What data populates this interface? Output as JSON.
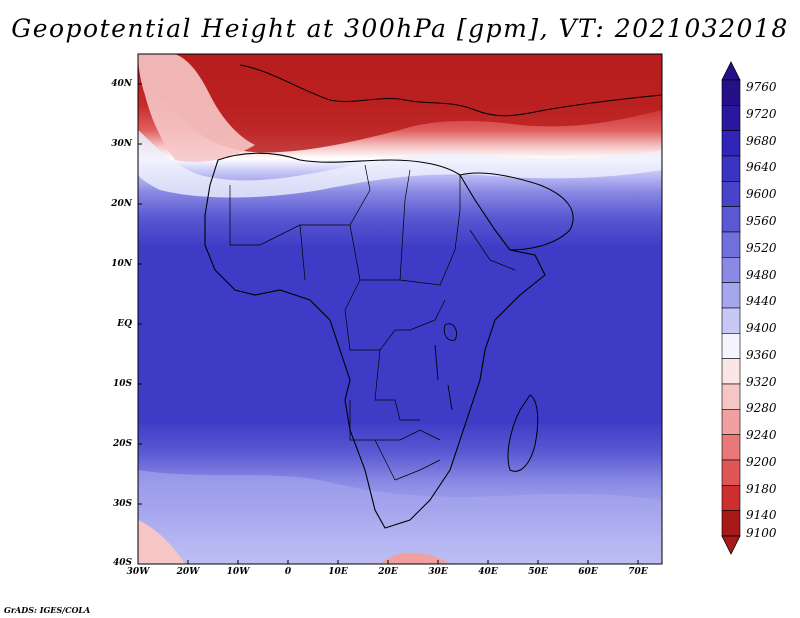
{
  "title": "Geopotential Height at 300hPa [gpm], VT: 2021032018",
  "credit": "GrADS: IGES/COLA",
  "lat_labels": [
    "40N",
    "30N",
    "20N",
    "10N",
    "EQ",
    "10S",
    "20S",
    "30S",
    "40S"
  ],
  "lon_labels": [
    "30W",
    "20W",
    "10W",
    "0",
    "10E",
    "20E",
    "30E",
    "40E",
    "50E",
    "60E",
    "70E"
  ],
  "colorbar": {
    "labels_top_to_bottom": [
      "9760",
      "9720",
      "9680",
      "9640",
      "9600",
      "9560",
      "9520",
      "9480",
      "9440",
      "9400",
      "9360",
      "9320",
      "9280",
      "9240",
      "9200",
      "9180",
      "9140",
      "9100"
    ],
    "colors_top_to_bottom": [
      "#26108a",
      "#2a179f",
      "#3124b6",
      "#3a34c2",
      "#4744ca",
      "#5a58d2",
      "#7070dc",
      "#8a8ae4",
      "#a6a6ee",
      "#c8c8f7",
      "#f4f4fc",
      "#fbe6e6",
      "#f6c6c6",
      "#f0a0a0",
      "#e97979",
      "#df5656",
      "#cd2f2f",
      "#a81a1a"
    ]
  }
}
